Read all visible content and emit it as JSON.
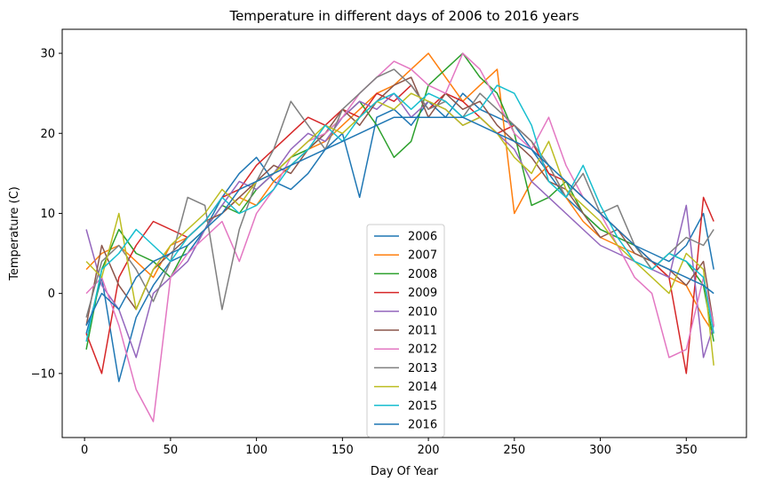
{
  "chart_data": {
    "type": "line",
    "title": "Temperature in different days of 2006 to 2016 years",
    "xlabel": "Day Of Year",
    "ylabel": "Temperature (C)",
    "xlim": [
      -13,
      385
    ],
    "ylim": [
      -18,
      33
    ],
    "xticks": [
      0,
      50,
      100,
      150,
      200,
      250,
      300,
      350
    ],
    "yticks": [
      -10,
      0,
      10,
      20,
      30
    ],
    "ytick_labels": [
      "−10",
      "0",
      "10",
      "20",
      "30"
    ],
    "grid": false,
    "legend_position": "lower center",
    "series": [
      {
        "name": "2006",
        "color": "#1f77b4"
      },
      {
        "name": "2007",
        "color": "#ff7f0e"
      },
      {
        "name": "2008",
        "color": "#2ca02c"
      },
      {
        "name": "2009",
        "color": "#d62728"
      },
      {
        "name": "2010",
        "color": "#9467bd"
      },
      {
        "name": "2011",
        "color": "#8c564b"
      },
      {
        "name": "2012",
        "color": "#e377c2"
      },
      {
        "name": "2013",
        "color": "#7f7f7f"
      },
      {
        "name": "2014",
        "color": "#bcbd22"
      },
      {
        "name": "2015",
        "color": "#17becf"
      },
      {
        "name": "2016",
        "color": "#1f77b4"
      }
    ],
    "x": [
      1,
      10,
      20,
      30,
      40,
      50,
      60,
      70,
      80,
      90,
      100,
      110,
      120,
      130,
      140,
      150,
      160,
      170,
      180,
      190,
      200,
      210,
      220,
      230,
      240,
      250,
      260,
      270,
      280,
      290,
      300,
      310,
      320,
      330,
      340,
      350,
      360,
      366
    ],
    "values_by_series": [
      [
        -5,
        2,
        -11,
        -3,
        1,
        4,
        5,
        8,
        12,
        15,
        17,
        14,
        13,
        15,
        18,
        20,
        12,
        22,
        23,
        21,
        24,
        22,
        25,
        23,
        22,
        21,
        18,
        15,
        12,
        10,
        8,
        7,
        6,
        5,
        4,
        6,
        10,
        3
      ],
      [
        3,
        5,
        6,
        4,
        2,
        6,
        7,
        9,
        10,
        12,
        11,
        14,
        16,
        18,
        19,
        21,
        23,
        25,
        26,
        28,
        30,
        27,
        24,
        26,
        28,
        10,
        14,
        16,
        12,
        9,
        7,
        6,
        5,
        4,
        2,
        1,
        -3,
        -5
      ],
      [
        -7,
        3,
        8,
        5,
        4,
        2,
        6,
        8,
        11,
        10,
        13,
        15,
        17,
        18,
        20,
        22,
        24,
        21,
        17,
        19,
        26,
        28,
        30,
        27,
        25,
        20,
        11,
        12,
        14,
        10,
        8,
        7,
        6,
        3,
        5,
        4,
        1,
        -6
      ],
      [
        -5,
        -10,
        2,
        6,
        9,
        8,
        7,
        9,
        12,
        13,
        16,
        18,
        20,
        22,
        21,
        23,
        22,
        25,
        24,
        26,
        23,
        25,
        24,
        22,
        20,
        21,
        19,
        15,
        14,
        12,
        10,
        8,
        6,
        4,
        2,
        -10,
        12,
        9
      ],
      [
        8,
        1,
        -2,
        -8,
        0,
        2,
        4,
        8,
        11,
        14,
        13,
        15,
        18,
        20,
        19,
        22,
        24,
        23,
        25,
        22,
        24,
        23,
        21,
        22,
        20,
        18,
        14,
        12,
        10,
        8,
        6,
        5,
        4,
        3,
        2,
        11,
        -8,
        -4
      ],
      [
        -4,
        6,
        1,
        -2,
        3,
        5,
        7,
        9,
        10,
        12,
        14,
        16,
        15,
        18,
        20,
        23,
        21,
        24,
        26,
        27,
        22,
        25,
        23,
        24,
        21,
        19,
        17,
        14,
        13,
        10,
        7,
        8,
        5,
        4,
        3,
        1,
        4,
        -4
      ],
      [
        0,
        2,
        -4,
        -12,
        -16,
        2,
        5,
        7,
        9,
        4,
        10,
        13,
        17,
        19,
        20,
        22,
        25,
        27,
        29,
        28,
        26,
        25,
        30,
        28,
        24,
        20,
        18,
        22,
        16,
        12,
        10,
        6,
        2,
        0,
        -8,
        -7,
        2,
        -4
      ],
      [
        -3,
        4,
        6,
        3,
        -1,
        4,
        12,
        11,
        -2,
        8,
        14,
        18,
        24,
        21,
        18,
        23,
        25,
        27,
        28,
        26,
        23,
        24,
        22,
        25,
        23,
        21,
        19,
        16,
        12,
        15,
        10,
        11,
        6,
        3,
        5,
        7,
        6,
        8
      ],
      [
        4,
        2,
        10,
        -2,
        3,
        6,
        8,
        10,
        13,
        11,
        14,
        15,
        17,
        19,
        21,
        20,
        22,
        24,
        23,
        25,
        24,
        23,
        21,
        22,
        20,
        17,
        15,
        19,
        13,
        11,
        9,
        6,
        4,
        2,
        0,
        5,
        3,
        -9
      ],
      [
        -6,
        3,
        5,
        8,
        6,
        4,
        7,
        9,
        12,
        10,
        11,
        13,
        16,
        18,
        21,
        19,
        22,
        24,
        25,
        23,
        25,
        24,
        22,
        23,
        26,
        25,
        21,
        14,
        12,
        16,
        11,
        7,
        4,
        3,
        5,
        4,
        2,
        -5
      ],
      [
        -4,
        0,
        -2,
        2,
        4,
        5,
        6,
        8,
        10,
        13,
        14,
        15,
        16,
        17,
        18,
        19,
        20,
        21,
        22,
        22,
        22,
        22,
        22,
        21,
        20,
        19,
        18,
        16,
        14,
        12,
        10,
        8,
        6,
        4,
        3,
        2,
        1,
        0
      ]
    ]
  }
}
